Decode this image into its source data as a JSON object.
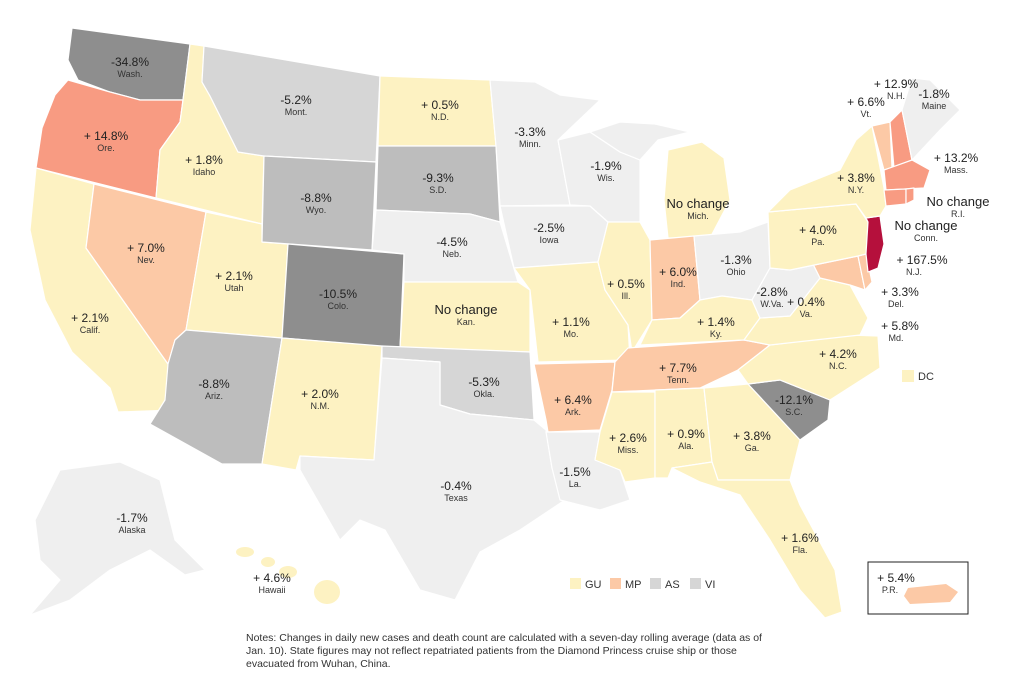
{
  "colors": {
    "lightest": "#efefef",
    "light_gray": "#d6d6d6",
    "mid_gray": "#bdbdbd",
    "dark_gray": "#8e8e8e",
    "yellow": "#fdf2c2",
    "peach": "#fcc9a6",
    "salmon": "#f89b82",
    "crimson": "#b5103c"
  },
  "states": {
    "WA": {
      "value": "-34.8%",
      "abbr": "Wash."
    },
    "OR": {
      "value": "+ 14.8%",
      "abbr": "Ore."
    },
    "CA": {
      "value": "+ 2.1%",
      "abbr": "Calif."
    },
    "ID": {
      "value": "+ 1.8%",
      "abbr": "Idaho"
    },
    "NV": {
      "value": "+ 7.0%",
      "abbr": "Nev."
    },
    "MT": {
      "value": "-5.2%",
      "abbr": "Mont."
    },
    "WY": {
      "value": "-8.8%",
      "abbr": "Wyo."
    },
    "UT": {
      "value": "+ 2.1%",
      "abbr": "Utah"
    },
    "AZ": {
      "value": "-8.8%",
      "abbr": "Ariz."
    },
    "CO": {
      "value": "-10.5%",
      "abbr": "Colo."
    },
    "NM": {
      "value": "+ 2.0%",
      "abbr": "N.M."
    },
    "ND": {
      "value": "+ 0.5%",
      "abbr": "N.D."
    },
    "SD": {
      "value": "-9.3%",
      "abbr": "S.D."
    },
    "NE": {
      "value": "-4.5%",
      "abbr": "Neb."
    },
    "KS": {
      "value": "No change",
      "abbr": "Kan."
    },
    "OK": {
      "value": "-5.3%",
      "abbr": "Okla."
    },
    "TX": {
      "value": "-0.4%",
      "abbr": "Texas"
    },
    "MN": {
      "value": "-3.3%",
      "abbr": "Minn."
    },
    "IA": {
      "value": "-2.5%",
      "abbr": "Iowa"
    },
    "MO": {
      "value": "+ 1.1%",
      "abbr": "Mo."
    },
    "AR": {
      "value": "+ 6.4%",
      "abbr": "Ark."
    },
    "LA": {
      "value": "-1.5%",
      "abbr": "La."
    },
    "WI": {
      "value": "-1.9%",
      "abbr": "Wis."
    },
    "IL": {
      "value": "+ 0.5%",
      "abbr": "Ill."
    },
    "MI": {
      "value": "No change",
      "abbr": "Mich."
    },
    "IN": {
      "value": "+ 6.0%",
      "abbr": "Ind."
    },
    "OH": {
      "value": "-1.3%",
      "abbr": "Ohio"
    },
    "KY": {
      "value": "+ 1.4%",
      "abbr": "Ky."
    },
    "TN": {
      "value": "+ 7.7%",
      "abbr": "Tenn."
    },
    "MS": {
      "value": "+ 2.6%",
      "abbr": "Miss."
    },
    "AL": {
      "value": "+ 0.9%",
      "abbr": "Ala."
    },
    "GA": {
      "value": "+ 3.8%",
      "abbr": "Ga."
    },
    "FL": {
      "value": "+ 1.6%",
      "abbr": "Fla."
    },
    "SC": {
      "value": "-12.1%",
      "abbr": "S.C."
    },
    "NC": {
      "value": "+ 4.2%",
      "abbr": "N.C."
    },
    "VA": {
      "value": "+ 0.4%",
      "abbr": "Va."
    },
    "WV": {
      "value": "-2.8%",
      "abbr": "W.Va."
    },
    "PA": {
      "value": "+ 4.0%",
      "abbr": "Pa."
    },
    "NY": {
      "value": "+ 3.8%",
      "abbr": "N.Y."
    },
    "VT": {
      "value": "+ 6.6%",
      "abbr": "Vt."
    },
    "NH": {
      "value": "+ 12.9%",
      "abbr": "N.H."
    },
    "ME": {
      "value": "-1.8%",
      "abbr": "Maine"
    },
    "MA": {
      "value": "+ 13.2%",
      "abbr": "Mass."
    },
    "RI": {
      "value": "No change",
      "abbr": "R.I."
    },
    "CT": {
      "value": "No change",
      "abbr": "Conn."
    },
    "NJ": {
      "value": "+ 167.5%",
      "abbr": "N.J."
    },
    "DE": {
      "value": "+ 3.3%",
      "abbr": "Del."
    },
    "MD": {
      "value": "+ 5.8%",
      "abbr": "Md."
    },
    "AK": {
      "value": "-1.7%",
      "abbr": "Alaska"
    },
    "HI": {
      "value": "+ 4.6%",
      "abbr": "Hawaii"
    },
    "PR": {
      "value": "+ 5.4%",
      "abbr": "P.R."
    }
  },
  "dc_label": "DC",
  "territories": [
    {
      "label": "GU",
      "color": "#fdf2c2"
    },
    {
      "label": "MP",
      "color": "#fcc9a6"
    },
    {
      "label": "AS",
      "color": "#d6d6d6"
    },
    {
      "label": "VI",
      "color": "#d6d6d6"
    }
  ],
  "notes": "Notes: Changes in daily new cases and death count are calculated with a seven-day rolling average (data as of Jan. 10). State figures may not reflect repatriated patients from the Diamond Princess cruise ship or those evacuated from Wuhan, China."
}
